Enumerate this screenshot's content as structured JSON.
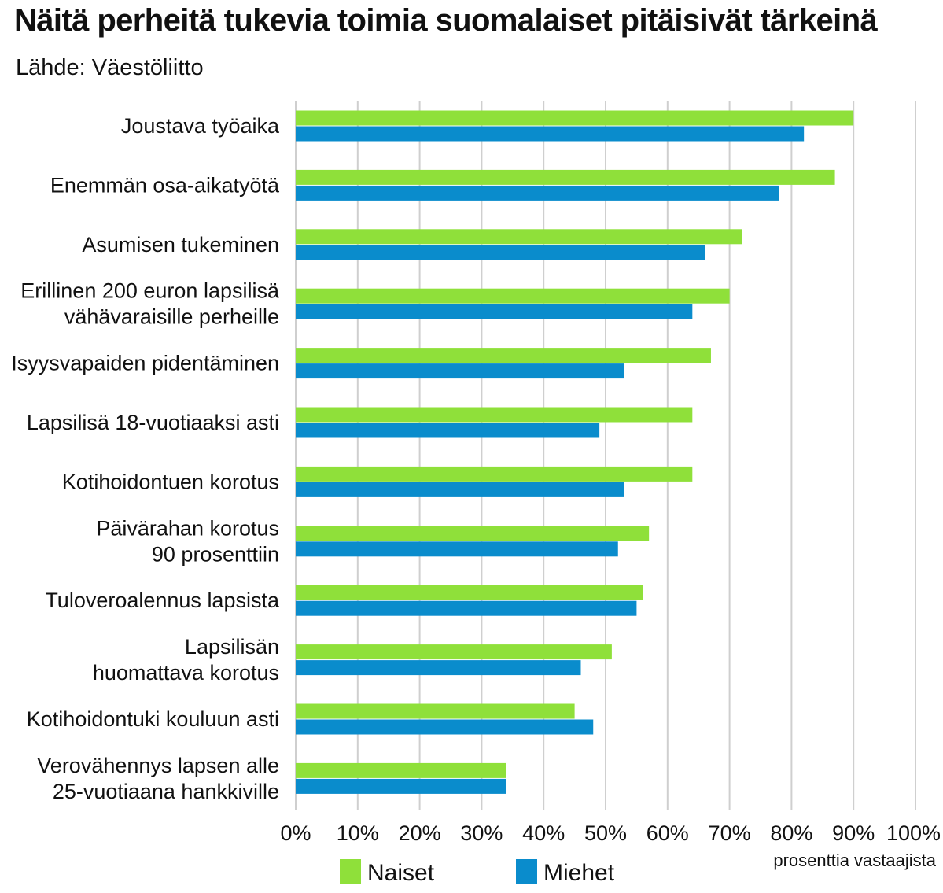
{
  "title": "Näitä perheitä tukevia toimia suomalaiset pitäisivät tärkeinä",
  "subtitle": "Lähde: Väestöliitto",
  "chart_data": {
    "type": "bar",
    "orientation": "horizontal",
    "title": "Näitä perheitä tukevia toimia suomalaiset pitäisivät tärkeinä",
    "subtitle": "Lähde: Väestöliitto",
    "xlabel": "prosenttia vastaajista",
    "ylabel": "",
    "xlim": [
      0,
      100
    ],
    "x_ticks": [
      "0%",
      "10%",
      "20%",
      "30%",
      "40%",
      "50%",
      "60%",
      "70%",
      "80%",
      "90%",
      "100%"
    ],
    "grid": "vertical",
    "legend_position": "bottom",
    "categories": [
      [
        "Joustava työaika"
      ],
      [
        "Enemmän osa-aikatyötä"
      ],
      [
        "Asumisen tukeminen"
      ],
      [
        "Erillinen 200 euron lapsilisä",
        "vähävaraisille perheille"
      ],
      [
        "Isyysvapaiden pidentäminen"
      ],
      [
        "Lapsilisä 18-vuotiaaksi asti"
      ],
      [
        "Kotihoidontuen korotus"
      ],
      [
        "Päivärahan korotus",
        "90 prosenttiin"
      ],
      [
        "Tuloveroalennus lapsista"
      ],
      [
        "Lapsilisän",
        "huomattava korotus"
      ],
      [
        "Kotihoidontuki kouluun asti"
      ],
      [
        "Verovähennys lapsen alle",
        "25-vuotiaana hankkiville"
      ]
    ],
    "series": [
      {
        "name": "Naiset",
        "color": "#8fe03a",
        "values": [
          90,
          87,
          72,
          70,
          67,
          64,
          64,
          57,
          56,
          51,
          45,
          34
        ]
      },
      {
        "name": "Miehet",
        "color": "#0a8ccc",
        "values": [
          82,
          78,
          66,
          64,
          53,
          49,
          53,
          52,
          55,
          46,
          48,
          34
        ]
      }
    ],
    "gridline_color": "#cfcfcf"
  }
}
